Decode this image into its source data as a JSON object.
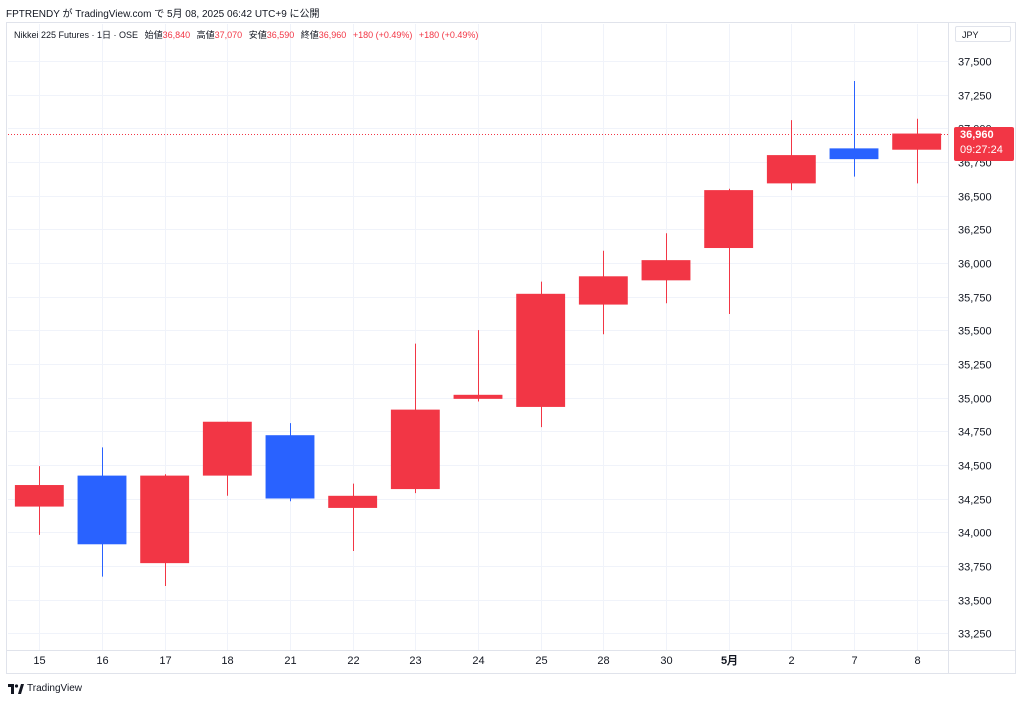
{
  "header": {
    "publish_line": "FPTRENDY が TradingView.com で 5月 08, 2025 06:42 UTC+9 に公開"
  },
  "legend": {
    "symbol": "Nikkei 225 Futures · 1日 · OSE",
    "open_label": "始値",
    "open_value": "36,840",
    "high_label": "高値",
    "high_value": "37,070",
    "low_label": "安値",
    "low_value": "36,590",
    "close_label": "終値",
    "close_value": "36,960",
    "change": "+180 (+0.49%)",
    "change2": "+180 (+0.49%)"
  },
  "currency_label": "JPY",
  "last_price": {
    "price": "36,960",
    "countdown": "09:27:24"
  },
  "footer": {
    "brand": "TradingView"
  },
  "colors": {
    "up": "#f23645",
    "down": "#2962ff",
    "grid": "#f0f3fa",
    "axis_text": "#131722"
  },
  "chart_data": {
    "type": "candlestick",
    "ylim": [
      33125,
      37625
    ],
    "yticks": [
      33250,
      33500,
      33750,
      34000,
      34250,
      34500,
      34750,
      35000,
      35250,
      35500,
      35750,
      36000,
      36250,
      36500,
      36750,
      37000,
      37250,
      37500
    ],
    "ytick_labels": [
      "33,250",
      "33,500",
      "33,750",
      "34,000",
      "34,250",
      "34,500",
      "34,750",
      "35,000",
      "35,250",
      "35,500",
      "35,750",
      "36,000",
      "36,250",
      "36,500",
      "36,750",
      "37,000",
      "37,250",
      "37,500"
    ],
    "categories": [
      "15",
      "16",
      "17",
      "18",
      "21",
      "22",
      "23",
      "24",
      "25",
      "28",
      "30",
      "5月",
      "2",
      "7",
      "8"
    ],
    "candles": [
      {
        "o": 34190,
        "h": 34490,
        "l": 33980,
        "c": 34350
      },
      {
        "o": 34420,
        "h": 34630,
        "l": 33670,
        "c": 33910
      },
      {
        "o": 33770,
        "h": 34430,
        "l": 33600,
        "c": 34420
      },
      {
        "o": 34420,
        "h": 34820,
        "l": 34270,
        "c": 34820
      },
      {
        "o": 34720,
        "h": 34810,
        "l": 34230,
        "c": 34250
      },
      {
        "o": 34180,
        "h": 34360,
        "l": 33860,
        "c": 34270
      },
      {
        "o": 34320,
        "h": 35400,
        "l": 34290,
        "c": 34910
      },
      {
        "o": 34990,
        "h": 35500,
        "l": 34970,
        "c": 35020
      },
      {
        "o": 34930,
        "h": 35860,
        "l": 34780,
        "c": 35770
      },
      {
        "o": 35690,
        "h": 36090,
        "l": 35470,
        "c": 35900
      },
      {
        "o": 35870,
        "h": 36220,
        "l": 35700,
        "c": 36020
      },
      {
        "o": 36110,
        "h": 36550,
        "l": 35620,
        "c": 36540
      },
      {
        "o": 36590,
        "h": 37060,
        "l": 36540,
        "c": 36800
      },
      {
        "o": 36850,
        "h": 37350,
        "l": 36640,
        "c": 36770
      },
      {
        "o": 36840,
        "h": 37070,
        "l": 36590,
        "c": 36960
      }
    ],
    "last_close": 36960
  }
}
